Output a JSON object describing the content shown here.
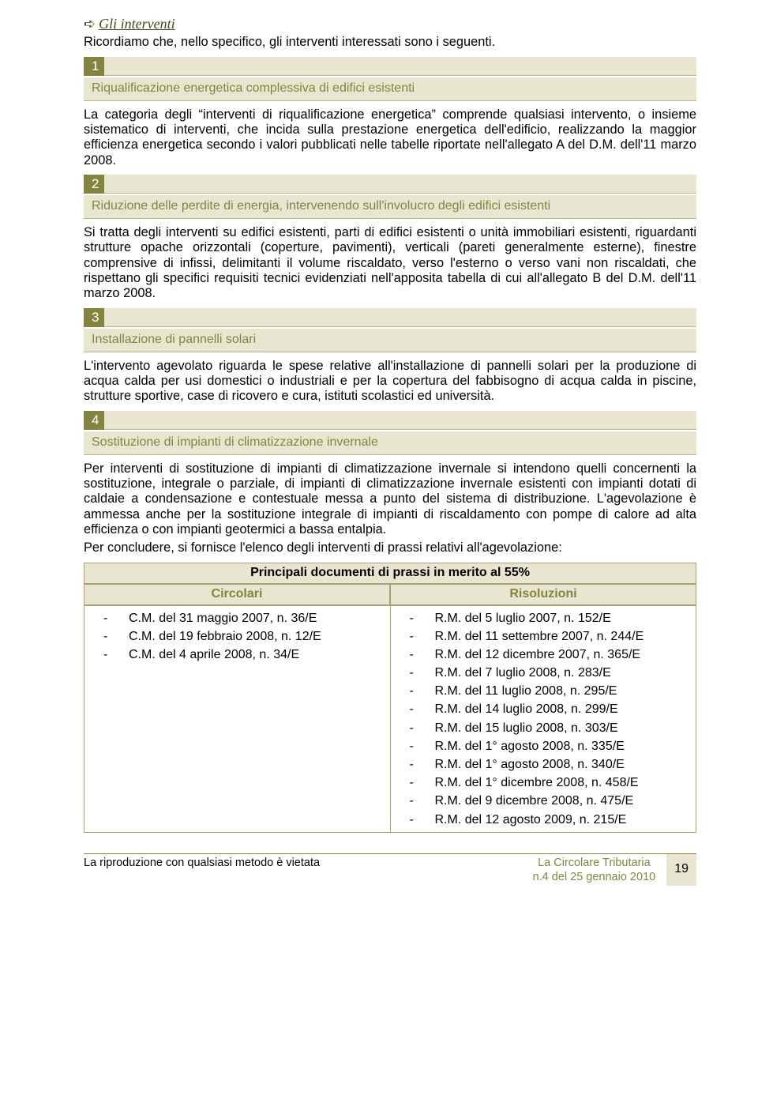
{
  "heading": {
    "icon": "➪",
    "text": "Gli interventi"
  },
  "intro": "Ricordiamo che, nello specifico, gli interventi interessati sono i seguenti.",
  "sections": [
    {
      "num": "1",
      "title": "Riqualificazione energetica complessiva di edifici esistenti",
      "body": "La categoria degli interventi di riqualificazione energetica\" comprende qualsiasi intervento, o insieme sistematico di interventi, che incida sulla prestazione energetica dell'edificio, realizzando la maggior efficienza energetica secondo i valori pubblicati nelle tabelle riportate nell'allegato A del D.M. dell'11 marzo 2008."
    },
    {
      "num": "2",
      "title": "Riduzione delle perdite di energia, intervenendo sull'involucro degli edifici esistenti",
      "body": "Si tratta degli interventi su edifici esistenti, parti di edifici esistenti o unità immobiliari esistenti, riguardanti strutture opache orizzontali (coperture, pavimenti), verticali (pareti generalmente esterne), finestre comprensive di infissi, delimitanti il volume riscaldato, verso l'esterno o verso vani non riscaldati, che rispettano gli specifici requisiti tecnici evidenziati nell'apposita tabella di cui all'allegato B del D.M. dell'11 marzo 2008."
    },
    {
      "num": "3",
      "title": "Installazione di pannelli solari",
      "body": "L'intervento agevolato riguarda le spese relative all'installazione di pannelli solari per la produzione di acqua calda per usi domestici o industriali e per la copertura del fabbisogno di acqua calda in piscine, strutture sportive, case di ricovero e cura, istituti scolastici ed università."
    },
    {
      "num": "4",
      "title": "Sostituzione di impianti di climatizzazione invernale",
      "body": "Per interventi di sostituzione di impianti di climatizzazione invernale si intendono quelli concernenti la sostituzione, integrale o parziale, di impianti di climatizzazione invernale esistenti con impianti dotati di caldaie a condensazione e contestuale messa a punto del sistema di distribuzione. L'agevolazione è ammessa anche per la sostituzione integrale di impianti di riscaldamento con pompe di calore ad alta efficienza o con impianti geotermici a bassa entalpia."
    }
  ],
  "conclude": "Per concludere, si fornisce l'elenco degli interventi di prassi relativi all'agevolazione:",
  "table": {
    "header": "Principali documenti di prassi in merito al 55%",
    "col1": "Circolari",
    "col2": "Risoluzioni",
    "circolari": [
      "C.M. del 31 maggio 2007, n. 36/E",
      "C.M. del 19 febbraio 2008, n. 12/E",
      "C.M. del 4 aprile 2008, n. 34/E"
    ],
    "risoluzioni": [
      "R.M. del 5 luglio 2007, n. 152/E",
      "R.M. del 11 settembre 2007, n. 244/E",
      "R.M. del 12 dicembre 2007, n. 365/E",
      "R.M. del 7 luglio 2008, n. 283/E",
      "R.M. del 11 luglio 2008, n. 295/E",
      "R.M. del 14 luglio 2008, n. 299/E",
      "R.M. del 15 luglio 2008, n. 303/E",
      "R.M. del 1° agosto 2008, n. 335/E",
      "R.M. del 1° agosto 2008, n. 340/E",
      "R.M. del 1° dicembre 2008, n. 458/E",
      "R.M. del 9 dicembre 2008, n. 475/E",
      "R.M. del 12 agosto 2009, n. 215/E"
    ]
  },
  "footer": {
    "left": "La riproduzione con qualsiasi metodo è vietata",
    "center1": "La Circolare Tributaria",
    "center2": "n.4 del 25 gennaio 2010",
    "page": "19"
  },
  "colors": {
    "olive": "#848441",
    "beige": "#e8e6d1",
    "dark": "#494818"
  }
}
